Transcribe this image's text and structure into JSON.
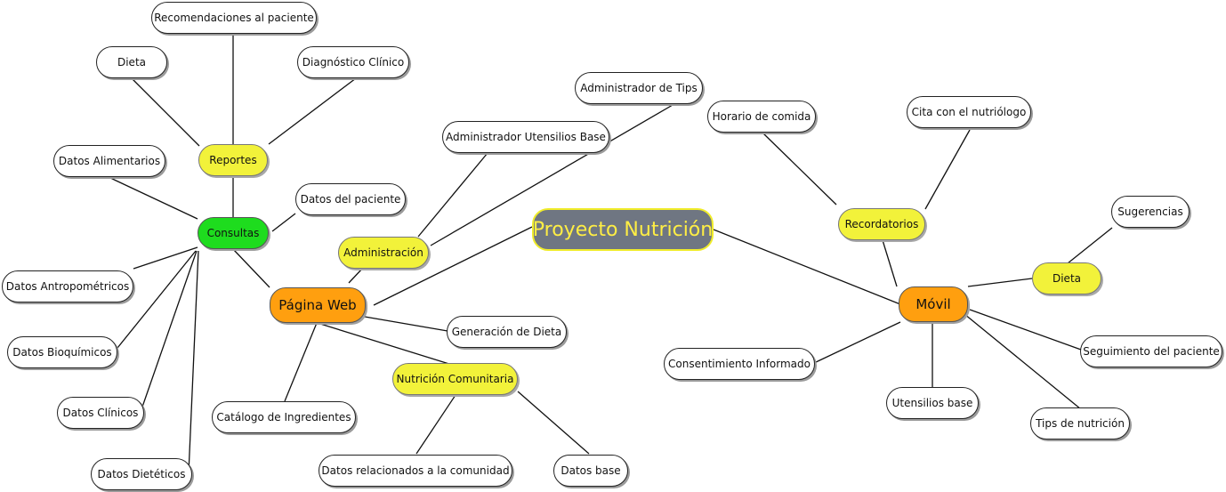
{
  "title": "Proyecto Nutrición",
  "web": {
    "label": "Página Web",
    "consultas": {
      "label": "Consultas",
      "reportes": {
        "label": "Reportes",
        "children": [
          "Recomendaciones al paciente",
          "Dieta",
          "Diagnóstico Clínico"
        ]
      },
      "children": [
        "Datos Alimentarios",
        "Datos del paciente",
        "Datos Antropométricos",
        "Datos Bioquímicos",
        "Datos Clínicos",
        "Datos Dietéticos"
      ]
    },
    "administracion": {
      "label": "Administración",
      "children": [
        "Administrador Utensilios Base",
        "Administrador de Tips"
      ]
    },
    "generacion_dieta": "Generación de Dieta",
    "catalogo": "Catálogo de Ingredientes",
    "comunitaria": {
      "label": "Nutrición Comunitaria",
      "children": [
        "Datos relacionados a la comunidad",
        "Datos base"
      ]
    }
  },
  "movil": {
    "label": "Móvil",
    "recordatorios": {
      "label": "Recordatorios",
      "children": [
        "Horario de comida",
        "Cita con el nutriólogo"
      ]
    },
    "dieta": {
      "label": "Dieta",
      "children": [
        "Sugerencias"
      ]
    },
    "children": [
      "Seguimiento del paciente",
      "Tips de nutrición",
      "Utensilios base",
      "Consentimiento Informado"
    ]
  }
}
